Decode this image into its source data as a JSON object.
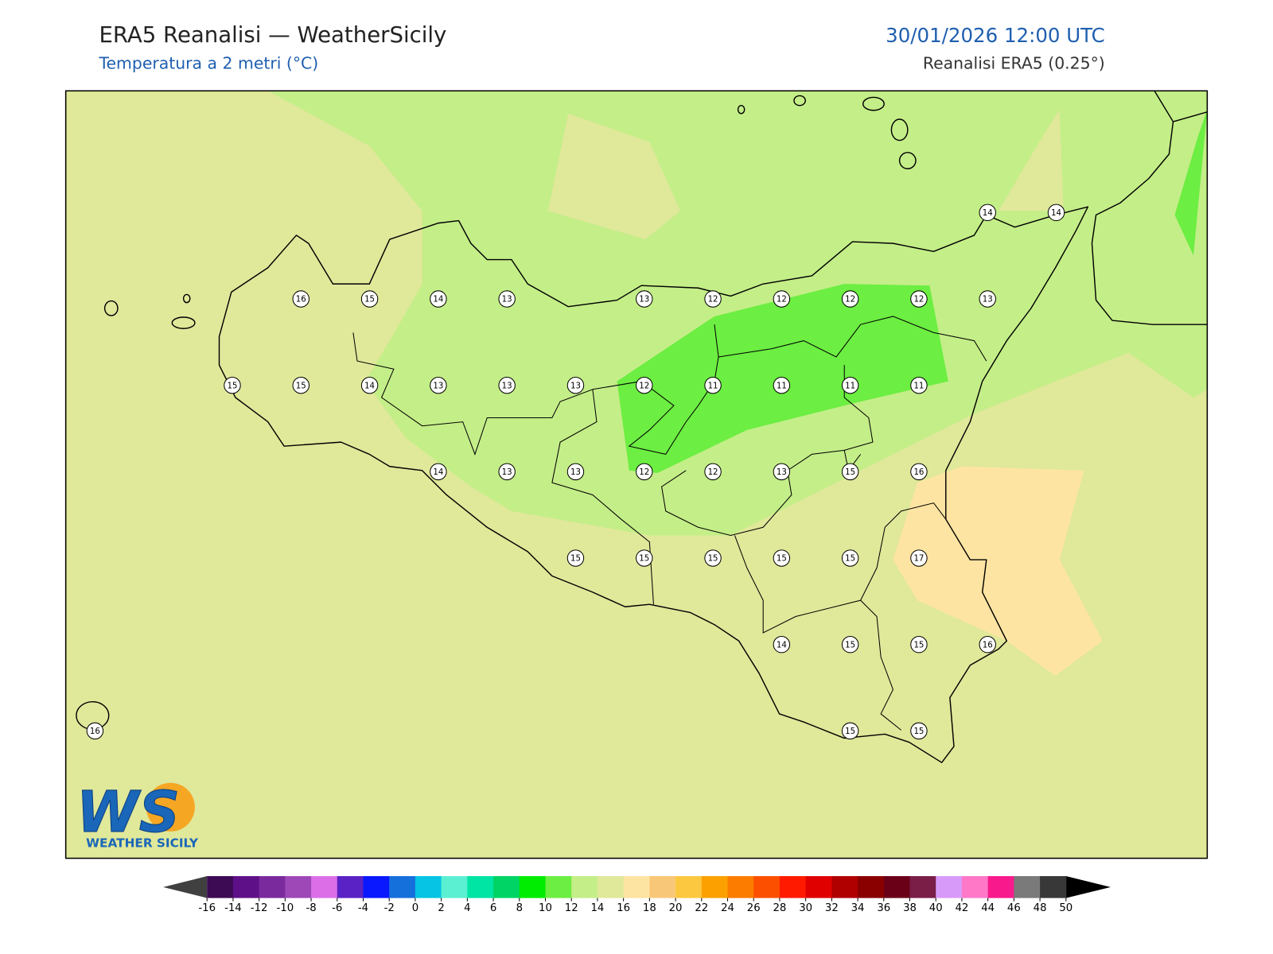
{
  "header": {
    "title": "ERA5 Reanalisi — WeatherSicily",
    "subtitle": "Temperatura a 2 metri (°C)",
    "datetime": "30/01/2026 12:00 UTC",
    "source": "Reanalisi ERA5 (0.25°)"
  },
  "map": {
    "station_values": [
      14,
      14,
      16,
      15,
      14,
      13,
      13,
      12,
      12,
      12,
      12,
      13,
      15,
      15,
      14,
      13,
      13,
      13,
      12,
      11,
      11,
      11,
      11,
      14,
      13,
      13,
      12,
      12,
      13,
      15,
      16,
      15,
      15,
      15,
      15,
      15,
      17,
      14,
      15,
      15,
      16,
      16,
      15,
      15
    ]
  },
  "logo": {
    "mark": "WS",
    "name": "WEATHER SICILY"
  },
  "colorbar": {
    "ticks": [
      -16,
      -14,
      -12,
      -10,
      -8,
      -6,
      -4,
      -2,
      0,
      2,
      4,
      6,
      8,
      10,
      12,
      14,
      16,
      18,
      20,
      22,
      24,
      26,
      28,
      30,
      32,
      34,
      36,
      38,
      40,
      42,
      44,
      46,
      48,
      50
    ],
    "colors": [
      "#3d0a54",
      "#5e1088",
      "#7b2a9e",
      "#9e48b8",
      "#dc6ee8",
      "#5a22c4",
      "#0a18ff",
      "#1670dc",
      "#06c4e4",
      "#5cf0d2",
      "#00e4a4",
      "#00d464",
      "#00ec00",
      "#6cee42",
      "#c4ee88",
      "#e0e89a",
      "#fee4a2",
      "#f8c878",
      "#fcc840",
      "#fca000",
      "#fc7c00",
      "#fc5000",
      "#ff1a00",
      "#e00000",
      "#b00000",
      "#8a0000",
      "#6a0018",
      "#7a1e48",
      "#d89af8",
      "#ff78c8",
      "#f81a8c",
      "#7a7a7a",
      "#383838"
    ],
    "under_color": "#404040",
    "over_color": "#000000"
  }
}
